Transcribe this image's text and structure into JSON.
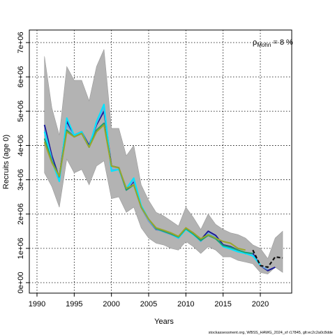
{
  "chart_data": {
    "type": "line",
    "xlabel": "Years",
    "ylabel": "Recruits (age 0)",
    "xlim": [
      1990,
      2023
    ],
    "ylim": [
      0,
      7000000
    ],
    "x_ticks": [
      {
        "value": 1990,
        "label": "1990"
      },
      {
        "value": 1995,
        "label": "1995"
      },
      {
        "value": 2000,
        "label": "2000"
      },
      {
        "value": 2005,
        "label": "2005"
      },
      {
        "value": 2010,
        "label": "2010"
      },
      {
        "value": 2015,
        "label": "2015"
      },
      {
        "value": 2020,
        "label": "2020"
      }
    ],
    "y_ticks": [
      {
        "value": 0,
        "label": "0e+00"
      },
      {
        "value": 1000000,
        "label": "1e+06"
      },
      {
        "value": 2000000,
        "label": "2e+06"
      },
      {
        "value": 3000000,
        "label": "3e+06"
      },
      {
        "value": 4000000,
        "label": "4e+06"
      },
      {
        "value": 5000000,
        "label": "5e+06"
      },
      {
        "value": 6000000,
        "label": "6e+06"
      },
      {
        "value": 7000000,
        "label": "7e+06"
      }
    ],
    "grid": true,
    "annotation": {
      "rho_label": "ρ",
      "rho_subscript": "Mohn",
      "value_text": " = 8 %"
    },
    "watermark": "stockassessment.org, WBSS_HAWG_2024_sf r17845, glt:ec2c2a0c8dde",
    "ci_band": {
      "x": [
        1991,
        1992,
        1993,
        1994,
        1995,
        1996,
        1997,
        1998,
        1999,
        2000,
        2001,
        2002,
        2003,
        2004,
        2005,
        2006,
        2007,
        2008,
        2009,
        2010,
        2011,
        2012,
        2013,
        2014,
        2015,
        2016,
        2017,
        2018,
        2019,
        2020,
        2021,
        2022,
        2023
      ],
      "upper": [
        6600000,
        5100000,
        4300000,
        6300000,
        5900000,
        5900000,
        5300000,
        6300000,
        6800000,
        4500000,
        4500000,
        3700000,
        4000000,
        2850000,
        2400000,
        2050000,
        1950000,
        1800000,
        1650000,
        2200000,
        1900000,
        1550000,
        2000000,
        1700000,
        1550000,
        1450000,
        1400000,
        1300000,
        1100000,
        1000000,
        700000,
        1300000,
        1500000
      ],
      "lower": [
        3200000,
        2800000,
        2200000,
        3600000,
        3200000,
        3300000,
        2850000,
        3400000,
        3550000,
        2450000,
        2500000,
        2050000,
        2200000,
        1600000,
        1300000,
        1150000,
        1100000,
        1000000,
        950000,
        1200000,
        1050000,
        850000,
        1050000,
        950000,
        750000,
        750000,
        650000,
        600000,
        550000,
        300000,
        250000,
        450000,
        300000
      ]
    },
    "series": [
      {
        "color": "#1a1a99",
        "x": [
          1991,
          1992,
          1993,
          1994,
          1995,
          1996,
          1997,
          1998,
          1999,
          2000,
          2001,
          2002,
          2003,
          2004,
          2005,
          2006,
          2007,
          2008,
          2009,
          2010,
          2011,
          2012,
          2013,
          2014,
          2015,
          2016,
          2017,
          2018,
          2019,
          2020,
          2021,
          2022
        ],
        "values": [
          4600000,
          3700000,
          3050000,
          4700000,
          4300000,
          4400000,
          4000000,
          4600000,
          5000000,
          3400000,
          3350000,
          2700000,
          2950000,
          2200000,
          1800000,
          1550000,
          1500000,
          1420000,
          1300000,
          1580000,
          1450000,
          1250000,
          1500000,
          1380000,
          1100000,
          1050000,
          950000,
          850000,
          850000,
          500000,
          350000,
          450000
        ]
      },
      {
        "color": "#6fa8dc",
        "x": [
          1991,
          1992,
          1993,
          1994,
          1995,
          1996,
          1997,
          1998,
          1999,
          2000,
          2001,
          2002,
          2003,
          2004,
          2005,
          2006,
          2007,
          2008,
          2009,
          2010,
          2011,
          2012,
          2013,
          2014,
          2015,
          2016,
          2017,
          2018,
          2019,
          2020,
          2021
        ],
        "values": [
          4450000,
          3600000,
          2950000,
          4600000,
          4250000,
          4350000,
          3950000,
          4650000,
          5100000,
          3300000,
          3300000,
          2700000,
          3000000,
          2200000,
          1800000,
          1560000,
          1480000,
          1400000,
          1300000,
          1560000,
          1420000,
          1200000,
          1440000,
          1320000,
          1050000,
          1000000,
          920000,
          850000,
          800000,
          500000,
          380000
        ]
      },
      {
        "color": "#00e5ff",
        "x": [
          1991,
          1992,
          1993,
          1994,
          1995,
          1996,
          1997,
          1998,
          1999,
          2000,
          2001,
          2002,
          2003,
          2004,
          2005,
          2006,
          2007,
          2008,
          2009,
          2010,
          2011,
          2012,
          2013,
          2014,
          2015,
          2016,
          2017,
          2018,
          2019,
          2020
        ],
        "values": [
          4400000,
          3550000,
          2950000,
          4800000,
          4300000,
          4400000,
          3950000,
          4700000,
          5200000,
          3250000,
          3300000,
          2750000,
          3050000,
          2250000,
          1850000,
          1580000,
          1500000,
          1420000,
          1300000,
          1550000,
          1400000,
          1220000,
          1400000,
          1300000,
          1050000,
          980000,
          900000,
          850000,
          780000,
          520000
        ]
      },
      {
        "color": "#1f9e6f",
        "x": [
          1991,
          1992,
          1993,
          1994,
          1995,
          1996,
          1997,
          1998,
          1999,
          2000,
          2001,
          2002,
          2003,
          2004,
          2005,
          2006,
          2007,
          2008,
          2009,
          2010,
          2011,
          2012,
          2013,
          2014,
          2015,
          2016,
          2017,
          2018,
          2019
        ],
        "values": [
          4200000,
          3550000,
          3100000,
          4450000,
          4250000,
          4350000,
          3950000,
          4450000,
          4650000,
          3400000,
          3350000,
          2700000,
          2850000,
          2200000,
          1850000,
          1580000,
          1500000,
          1420000,
          1330000,
          1580000,
          1420000,
          1230000,
          1380000,
          1280000,
          1080000,
          1030000,
          950000,
          880000,
          850000
        ]
      },
      {
        "color": "#9aa52b",
        "x": [
          1991,
          1992,
          1993,
          1994,
          1995,
          1996,
          1997,
          1998,
          1999,
          2000,
          2001,
          2002,
          2003,
          2004,
          2005,
          2006,
          2007,
          2008,
          2009,
          2010,
          2011,
          2012,
          2013,
          2014,
          2015,
          2016,
          2017,
          2018
        ],
        "values": [
          4100000,
          3500000,
          3100000,
          4400000,
          4250000,
          4350000,
          3950000,
          4400000,
          4600000,
          3400000,
          3350000,
          2750000,
          2850000,
          2200000,
          1850000,
          1600000,
          1530000,
          1450000,
          1350000,
          1600000,
          1450000,
          1280000,
          1400000,
          1300000,
          1200000,
          1150000,
          1000000,
          950000
        ]
      },
      {
        "color": "#111111",
        "dashed": true,
        "x": [
          2019,
          2020,
          2021,
          2022,
          2023
        ],
        "values": [
          950000,
          500000,
          450000,
          750000,
          720000
        ]
      }
    ]
  }
}
